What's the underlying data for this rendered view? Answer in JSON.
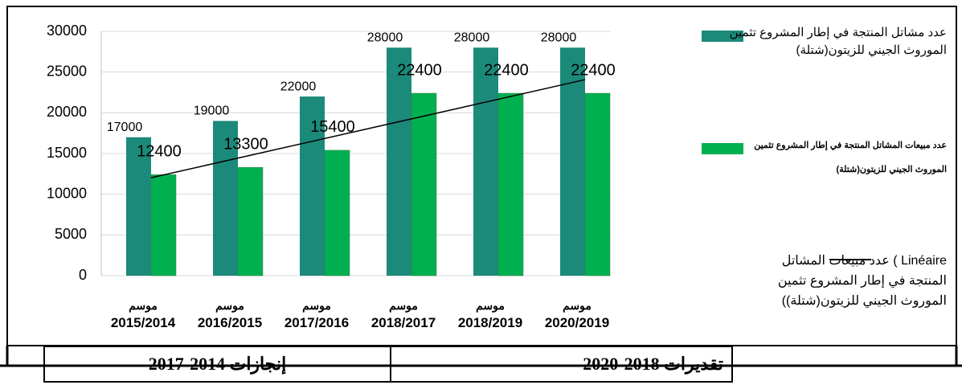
{
  "chart_data": {
    "type": "bar",
    "categories": [
      "موسم 2015/2014",
      "موسم 2016/2015",
      "موسم 2017/2016",
      "موسم 2018/2017",
      "موسم 2018/2019",
      "موسم 2020/2019"
    ],
    "series": [
      {
        "name": "عدد مشاتل المنتجة في إطار المشروع تثمين الموروث الجيني للزيتون(شتلة)",
        "color": "#1b8a7a",
        "values": [
          17000,
          19000,
          22000,
          28000,
          28000,
          28000
        ]
      },
      {
        "name": "عدد مبيعات المشاتل المنتجة في إطار المشروع تثمين الموروث الجيني للزيتون(شتلة)",
        "color": "#00b050",
        "values": [
          12400,
          13300,
          15400,
          22400,
          22400,
          22400
        ]
      }
    ],
    "trendline": {
      "name": "Linéaire ) عدد مبيعات المشاتل المنتجة في إطار المشروع تثمين الموروث الجيني للزيتون(شتلة))",
      "series": 1,
      "color": "#000000"
    },
    "ylim": [
      0,
      30000
    ],
    "yticks": [
      0,
      5000,
      10000,
      15000,
      20000,
      25000,
      30000
    ],
    "grid": true
  },
  "table": {
    "cells": [
      "إنجازات 2014-2017",
      "تقديرات 2018-2020"
    ]
  }
}
